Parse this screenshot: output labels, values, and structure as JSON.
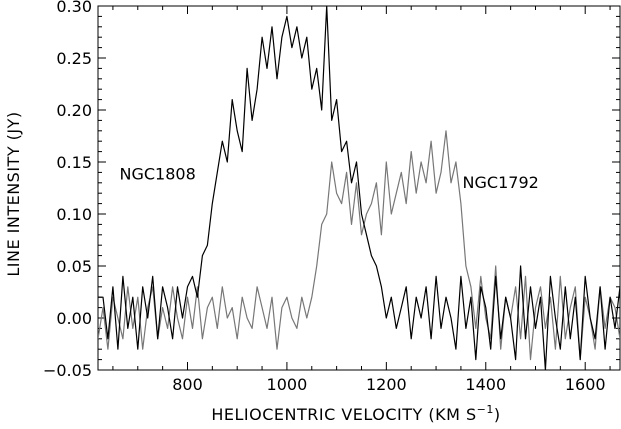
{
  "chart_data": {
    "type": "line",
    "xlabel_main": "HELIOCENTRIC VELOCITY (KM S",
    "xlabel_sup": "−1",
    "xlabel_end": ")",
    "ylabel": "LINE INTENSITY (JY)",
    "xlim": [
      620,
      1670
    ],
    "ylim": [
      -0.05,
      0.3
    ],
    "xticks": [
      800,
      1000,
      1200,
      1400,
      1600
    ],
    "xtick_labels": [
      "800",
      "1000",
      "1200",
      "1400",
      "1600"
    ],
    "yticks": [
      -0.05,
      0.0,
      0.05,
      0.1,
      0.15,
      0.2,
      0.25,
      0.3
    ],
    "ytick_labels": [
      "−0.05",
      "0.00",
      "0.05",
      "0.10",
      "0.15",
      "0.20",
      "0.25",
      "0.30"
    ],
    "grid": false,
    "series": [
      {
        "name": "NGC1808",
        "color": "#000000",
        "style": "solid",
        "x": [
          620,
          630,
          640,
          650,
          660,
          670,
          680,
          690,
          700,
          710,
          720,
          730,
          740,
          750,
          760,
          770,
          780,
          790,
          800,
          810,
          820,
          830,
          840,
          850,
          860,
          870,
          880,
          890,
          900,
          910,
          920,
          930,
          940,
          950,
          960,
          970,
          980,
          990,
          1000,
          1010,
          1020,
          1030,
          1040,
          1050,
          1060,
          1070,
          1080,
          1090,
          1100,
          1110,
          1120,
          1130,
          1140,
          1150,
          1160,
          1170,
          1180,
          1190,
          1200,
          1210,
          1220,
          1230,
          1240,
          1250,
          1260,
          1270,
          1280,
          1290,
          1300,
          1310,
          1320,
          1330,
          1340,
          1350,
          1360,
          1370,
          1380,
          1390,
          1400,
          1410,
          1420,
          1430,
          1440,
          1450,
          1460,
          1470,
          1480,
          1490,
          1500,
          1510,
          1520,
          1530,
          1540,
          1550,
          1560,
          1570,
          1580,
          1590,
          1600,
          1610,
          1620,
          1630,
          1640,
          1650,
          1660,
          1670
        ],
        "y": [
          0.02,
          0.02,
          -0.02,
          0.03,
          -0.03,
          0.04,
          -0.01,
          0.02,
          -0.03,
          0.03,
          0.0,
          0.04,
          -0.02,
          0.03,
          0.01,
          -0.02,
          0.03,
          0.0,
          0.03,
          0.04,
          0.02,
          0.06,
          0.07,
          0.11,
          0.14,
          0.17,
          0.15,
          0.21,
          0.18,
          0.16,
          0.24,
          0.19,
          0.22,
          0.27,
          0.24,
          0.28,
          0.23,
          0.27,
          0.29,
          0.26,
          0.28,
          0.25,
          0.27,
          0.22,
          0.24,
          0.2,
          0.3,
          0.19,
          0.21,
          0.16,
          0.17,
          0.13,
          0.15,
          0.1,
          0.08,
          0.06,
          0.05,
          0.03,
          0.0,
          0.02,
          -0.01,
          0.01,
          0.03,
          -0.02,
          0.02,
          0.0,
          0.03,
          -0.02,
          0.04,
          -0.01,
          0.02,
          0.0,
          -0.03,
          0.04,
          -0.01,
          0.02,
          -0.04,
          0.03,
          0.01,
          -0.03,
          0.04,
          -0.02,
          0.02,
          0.0,
          -0.04,
          0.05,
          -0.02,
          0.03,
          -0.01,
          0.02,
          -0.05,
          0.04,
          0.0,
          -0.03,
          0.03,
          -0.02,
          0.02,
          -0.04,
          0.04,
          0.0,
          -0.02,
          0.03,
          -0.03,
          0.02,
          -0.01,
          0.03
        ]
      },
      {
        "name": "NGC1792",
        "color": "#777777",
        "style": "solid",
        "x": [
          620,
          630,
          640,
          650,
          660,
          670,
          680,
          690,
          700,
          710,
          720,
          730,
          740,
          750,
          760,
          770,
          780,
          790,
          800,
          810,
          820,
          830,
          840,
          850,
          860,
          870,
          880,
          890,
          900,
          910,
          920,
          930,
          940,
          950,
          960,
          970,
          980,
          990,
          1000,
          1010,
          1020,
          1030,
          1040,
          1050,
          1060,
          1070,
          1080,
          1090,
          1100,
          1110,
          1120,
          1130,
          1140,
          1150,
          1160,
          1170,
          1180,
          1190,
          1200,
          1210,
          1220,
          1230,
          1240,
          1250,
          1260,
          1270,
          1280,
          1290,
          1300,
          1310,
          1320,
          1330,
          1340,
          1350,
          1360,
          1370,
          1380,
          1390,
          1400,
          1410,
          1420,
          1430,
          1440,
          1450,
          1460,
          1470,
          1480,
          1490,
          1500,
          1510,
          1520,
          1530,
          1540,
          1550,
          1560,
          1570,
          1580,
          1590,
          1600,
          1610,
          1620,
          1630,
          1640,
          1650,
          1660,
          1670
        ],
        "y": [
          -0.02,
          0.01,
          -0.03,
          0.02,
          0.0,
          -0.02,
          0.03,
          -0.01,
          0.02,
          -0.03,
          0.01,
          0.03,
          -0.02,
          0.01,
          -0.01,
          0.03,
          0.0,
          -0.02,
          0.02,
          -0.01,
          0.03,
          -0.02,
          0.01,
          0.02,
          -0.01,
          0.03,
          0.0,
          0.01,
          -0.02,
          0.02,
          0.0,
          -0.01,
          0.03,
          0.01,
          -0.01,
          0.02,
          -0.03,
          0.01,
          0.02,
          0.0,
          -0.01,
          0.02,
          0.0,
          0.02,
          0.05,
          0.09,
          0.1,
          0.15,
          0.12,
          0.11,
          0.14,
          0.09,
          0.13,
          0.08,
          0.1,
          0.11,
          0.13,
          0.08,
          0.15,
          0.1,
          0.12,
          0.14,
          0.11,
          0.16,
          0.12,
          0.15,
          0.13,
          0.17,
          0.12,
          0.14,
          0.18,
          0.13,
          0.15,
          0.11,
          0.05,
          0.03,
          -0.01,
          0.04,
          0.0,
          -0.02,
          0.05,
          -0.03,
          0.02,
          0.0,
          0.03,
          -0.02,
          0.04,
          -0.04,
          0.01,
          0.03,
          -0.01,
          0.02,
          -0.03,
          0.04,
          -0.02,
          0.01,
          0.03,
          -0.04,
          0.02,
          0.0,
          -0.03,
          0.03,
          -0.01,
          0.02,
          0.01,
          -0.02
        ]
      }
    ],
    "annotations": [
      {
        "text": "NGC1808",
        "x": 740,
        "y": 0.133
      },
      {
        "text": "NGC1792",
        "x": 1430,
        "y": 0.125
      }
    ]
  }
}
